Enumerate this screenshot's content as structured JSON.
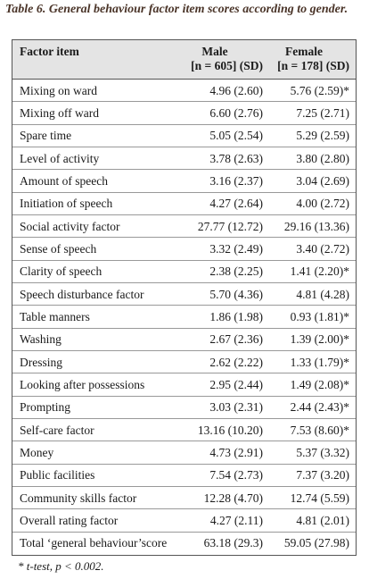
{
  "header": {
    "title": "Table 6. General behaviour factor item scores according to gender."
  },
  "table": {
    "columns": [
      {
        "name": "Factor item"
      },
      {
        "name": "Male",
        "sub": "[n = 605] (SD)"
      },
      {
        "name": "Female",
        "sub": "[n = 178] (SD)"
      }
    ],
    "rows": [
      [
        "Mixing on ward",
        "4.96 (2.60)",
        "5.76 (2.59)*"
      ],
      [
        "Mixing off ward",
        "6.60 (2.76)",
        "7.25 (2.71)"
      ],
      [
        "Spare time",
        "5.05 (2.54)",
        "5.29 (2.59)"
      ],
      [
        "Level of activity",
        "3.78 (2.63)",
        "3.80 (2.80)"
      ],
      [
        "Amount of speech",
        "3.16 (2.37)",
        "3.04 (2.69)"
      ],
      [
        "Initiation of speech",
        "4.27 (2.64)",
        "4.00 (2.72)"
      ],
      [
        "Social activity factor",
        "27.77 (12.72)",
        "29.16 (13.36)"
      ],
      [
        "Sense of speech",
        "3.32 (2.49)",
        "3.40 (2.72)"
      ],
      [
        "Clarity of speech",
        "2.38 (2.25)",
        "1.41 (2.20)*"
      ],
      [
        "Speech disturbance factor",
        "5.70 (4.36)",
        "4.81 (4.28)"
      ],
      [
        "Table manners",
        "1.86 (1.98)",
        "0.93 (1.81)*"
      ],
      [
        "Washing",
        "2.67 (2.36)",
        "1.39 (2.00)*"
      ],
      [
        "Dressing",
        "2.62 (2.22)",
        "1.33 (1.79)*"
      ],
      [
        "Looking after possessions",
        "2.95 (2.44)",
        "1.49 (2.08)*"
      ],
      [
        "Prompting",
        "3.03 (2.31)",
        "2.44 (2.43)*"
      ],
      [
        "Self-care factor",
        "13.16 (10.20)",
        "7.53 (8.60)*"
      ],
      [
        "Money",
        "4.73 (2.91)",
        "5.37 (3.32)"
      ],
      [
        "Public facilities",
        "7.54 (2.73)",
        "7.37 (3.20)"
      ],
      [
        "Community skills factor",
        "12.28 (4.70)",
        "12.74 (5.59)"
      ],
      [
        "Overall rating factor",
        "4.27 (2.11)",
        "4.81 (2.01)"
      ],
      [
        "Total ‘general behaviour’score",
        "63.18 (29.3)",
        "59.05 (27.98)"
      ]
    ]
  },
  "footnote": "* t-test, p < 0.002."
}
